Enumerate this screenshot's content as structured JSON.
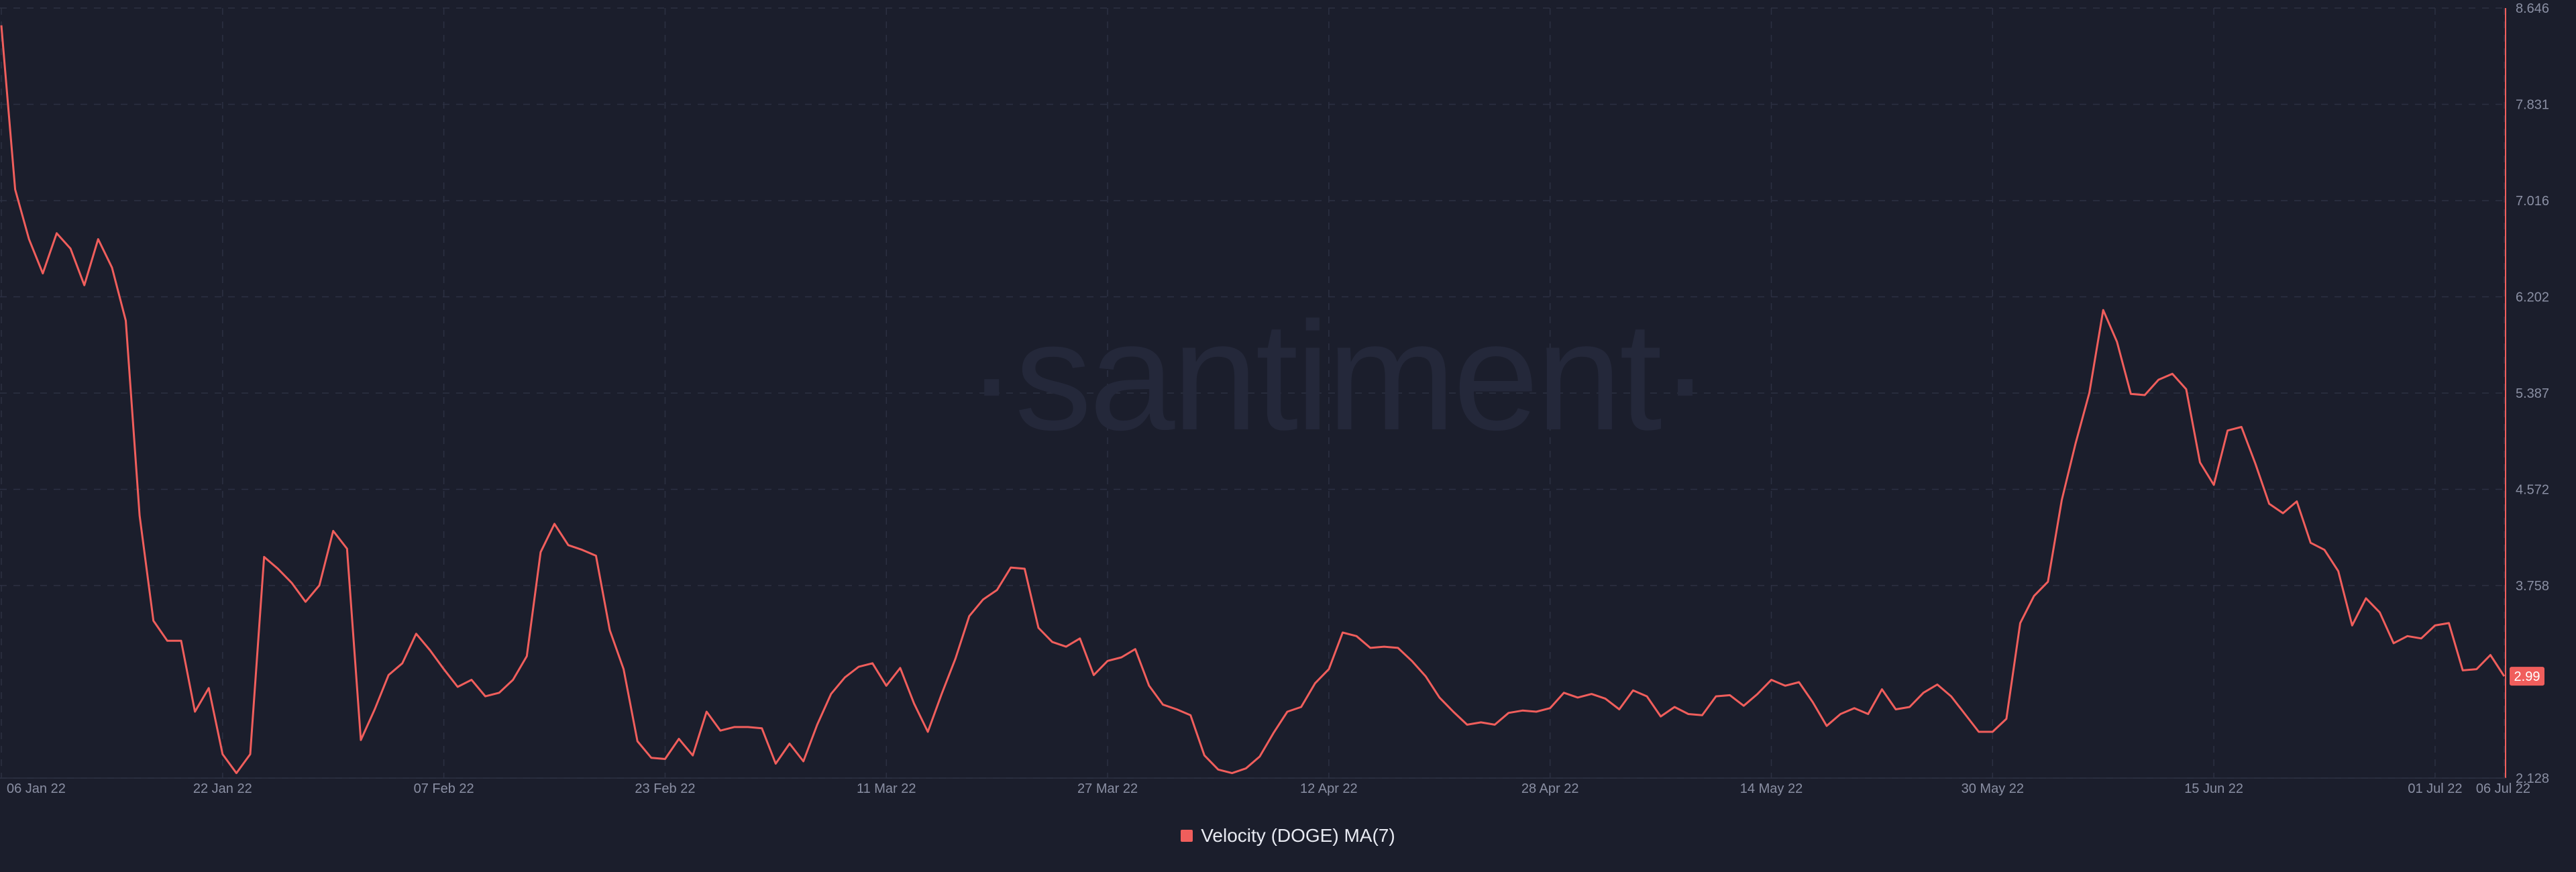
{
  "watermark": "·santiment·",
  "legend": {
    "label": "Velocity (DOGE) MA(7)",
    "color": "#f05e5c"
  },
  "colors": {
    "background": "#1b1e2c",
    "line": "#f05e5c",
    "grid": "#2c3042",
    "axis_text": "#8a8fa3"
  },
  "chart_data": {
    "type": "line",
    "grid": true,
    "legend_position": "bottom-center",
    "x_tick_labels": [
      "06 Jan 22",
      "22 Jan 22",
      "07 Feb 22",
      "23 Feb 22",
      "11 Mar 22",
      "27 Mar 22",
      "12 Apr 22",
      "28 Apr 22",
      "14 May 22",
      "30 May 22",
      "15 Jun 22",
      "01 Jul 22",
      "06 Jul 22"
    ],
    "y_tick_labels": [
      "8.646",
      "7.831",
      "7.016",
      "6.202",
      "5.387",
      "4.572",
      "3.758",
      "2.128"
    ],
    "ylim": [
      2.128,
      8.646
    ],
    "last_value_label": "2.99",
    "series": [
      {
        "name": "Velocity (DOGE) MA(7)",
        "x": [
          "2022-01-06",
          "2022-01-07",
          "2022-01-08",
          "2022-01-09",
          "2022-01-10",
          "2022-01-11",
          "2022-01-12",
          "2022-01-13",
          "2022-01-14",
          "2022-01-15",
          "2022-01-16",
          "2022-01-17",
          "2022-01-18",
          "2022-01-19",
          "2022-01-20",
          "2022-01-21",
          "2022-01-22",
          "2022-01-23",
          "2022-01-24",
          "2022-01-25",
          "2022-01-26",
          "2022-01-27",
          "2022-01-28",
          "2022-01-29",
          "2022-01-30",
          "2022-01-31",
          "2022-02-01",
          "2022-02-02",
          "2022-02-03",
          "2022-02-04",
          "2022-02-05",
          "2022-02-06",
          "2022-02-07",
          "2022-02-08",
          "2022-02-09",
          "2022-02-10",
          "2022-02-11",
          "2022-02-12",
          "2022-02-13",
          "2022-02-14",
          "2022-02-15",
          "2022-02-16",
          "2022-02-17",
          "2022-02-18",
          "2022-02-19",
          "2022-02-20",
          "2022-02-21",
          "2022-02-22",
          "2022-02-23",
          "2022-02-24",
          "2022-02-25",
          "2022-02-26",
          "2022-02-27",
          "2022-02-28",
          "2022-03-01",
          "2022-03-02",
          "2022-03-03",
          "2022-03-04",
          "2022-03-05",
          "2022-03-06",
          "2022-03-07",
          "2022-03-08",
          "2022-03-09",
          "2022-03-10",
          "2022-03-11",
          "2022-03-12",
          "2022-03-13",
          "2022-03-14",
          "2022-03-15",
          "2022-03-16",
          "2022-03-17",
          "2022-03-18",
          "2022-03-19",
          "2022-03-20",
          "2022-03-21",
          "2022-03-22",
          "2022-03-23",
          "2022-03-24",
          "2022-03-25",
          "2022-03-26",
          "2022-03-27",
          "2022-03-28",
          "2022-03-29",
          "2022-03-30",
          "2022-03-31",
          "2022-04-01",
          "2022-04-02",
          "2022-04-03",
          "2022-04-04",
          "2022-04-05",
          "2022-04-06",
          "2022-04-07",
          "2022-04-08",
          "2022-04-09",
          "2022-04-10",
          "2022-04-11",
          "2022-04-12",
          "2022-04-13",
          "2022-04-14",
          "2022-04-15",
          "2022-04-16",
          "2022-04-17",
          "2022-04-18",
          "2022-04-19",
          "2022-04-20",
          "2022-04-21",
          "2022-04-22",
          "2022-04-23",
          "2022-04-24",
          "2022-04-25",
          "2022-04-26",
          "2022-04-27",
          "2022-04-28",
          "2022-04-29",
          "2022-04-30",
          "2022-05-01",
          "2022-05-02",
          "2022-05-03",
          "2022-05-04",
          "2022-05-05",
          "2022-05-06",
          "2022-05-07",
          "2022-05-08",
          "2022-05-09",
          "2022-05-10",
          "2022-05-11",
          "2022-05-12",
          "2022-05-13",
          "2022-05-14",
          "2022-05-15",
          "2022-05-16",
          "2022-05-17",
          "2022-05-18",
          "2022-05-19",
          "2022-05-20",
          "2022-05-21",
          "2022-05-22",
          "2022-05-23",
          "2022-05-24",
          "2022-05-25",
          "2022-05-26",
          "2022-05-27",
          "2022-05-28",
          "2022-05-29",
          "2022-05-30",
          "2022-05-31",
          "2022-06-01",
          "2022-06-02",
          "2022-06-03",
          "2022-06-04",
          "2022-06-05",
          "2022-06-06",
          "2022-06-07",
          "2022-06-08",
          "2022-06-09",
          "2022-06-10",
          "2022-06-11",
          "2022-06-12",
          "2022-06-13",
          "2022-06-14",
          "2022-06-15",
          "2022-06-16",
          "2022-06-17",
          "2022-06-18",
          "2022-06-19",
          "2022-06-20",
          "2022-06-21",
          "2022-06-22",
          "2022-06-23",
          "2022-06-24",
          "2022-06-25",
          "2022-06-26",
          "2022-06-27",
          "2022-06-28",
          "2022-06-29",
          "2022-06-30",
          "2022-07-01",
          "2022-07-02",
          "2022-07-03",
          "2022-07-04",
          "2022-07-05",
          "2022-07-06"
        ],
        "values": [
          8.5,
          7.11,
          6.69,
          6.4,
          6.74,
          6.61,
          6.3,
          6.69,
          6.45,
          6.0,
          4.35,
          3.46,
          3.29,
          3.29,
          2.69,
          2.89,
          2.33,
          2.17,
          2.33,
          4.0,
          3.9,
          3.78,
          3.62,
          3.76,
          4.22,
          4.07,
          2.45,
          2.71,
          3.0,
          3.1,
          3.35,
          3.21,
          3.05,
          2.9,
          2.96,
          2.82,
          2.85,
          2.96,
          3.16,
          4.04,
          4.28,
          4.1,
          4.06,
          4.01,
          3.38,
          3.05,
          2.44,
          2.3,
          2.29,
          2.46,
          2.32,
          2.69,
          2.53,
          2.56,
          2.56,
          2.55,
          2.25,
          2.42,
          2.27,
          2.58,
          2.84,
          2.98,
          3.07,
          3.1,
          2.91,
          3.06,
          2.76,
          2.52,
          2.84,
          3.14,
          3.5,
          3.64,
          3.72,
          3.91,
          3.9,
          3.4,
          3.28,
          3.24,
          3.31,
          3.0,
          3.12,
          3.15,
          3.22,
          2.91,
          2.75,
          2.71,
          2.66,
          2.32,
          2.2,
          2.17,
          2.21,
          2.31,
          2.51,
          2.69,
          2.73,
          2.93,
          3.05,
          3.36,
          3.33,
          3.23,
          3.24,
          3.23,
          3.12,
          2.99,
          2.81,
          2.69,
          2.58,
          2.6,
          2.58,
          2.68,
          2.7,
          2.69,
          2.72,
          2.85,
          2.81,
          2.84,
          2.8,
          2.71,
          2.87,
          2.82,
          2.65,
          2.73,
          2.67,
          2.66,
          2.82,
          2.83,
          2.74,
          2.84,
          2.96,
          2.91,
          2.94,
          2.77,
          2.57,
          2.67,
          2.72,
          2.67,
          2.88,
          2.71,
          2.73,
          2.85,
          2.92,
          2.82,
          2.67,
          2.52,
          2.52,
          2.63,
          3.44,
          3.67,
          3.79,
          4.48,
          4.96,
          5.39,
          6.09,
          5.82,
          5.38,
          5.37,
          5.5,
          5.55,
          5.42,
          4.8,
          4.61,
          5.07,
          5.1,
          4.79,
          4.45,
          4.37,
          4.47,
          4.12,
          4.06,
          3.88,
          3.42,
          3.65,
          3.53,
          3.27,
          3.33,
          3.31,
          3.42,
          3.44,
          3.04,
          3.05,
          3.17,
          2.99
        ]
      }
    ]
  }
}
